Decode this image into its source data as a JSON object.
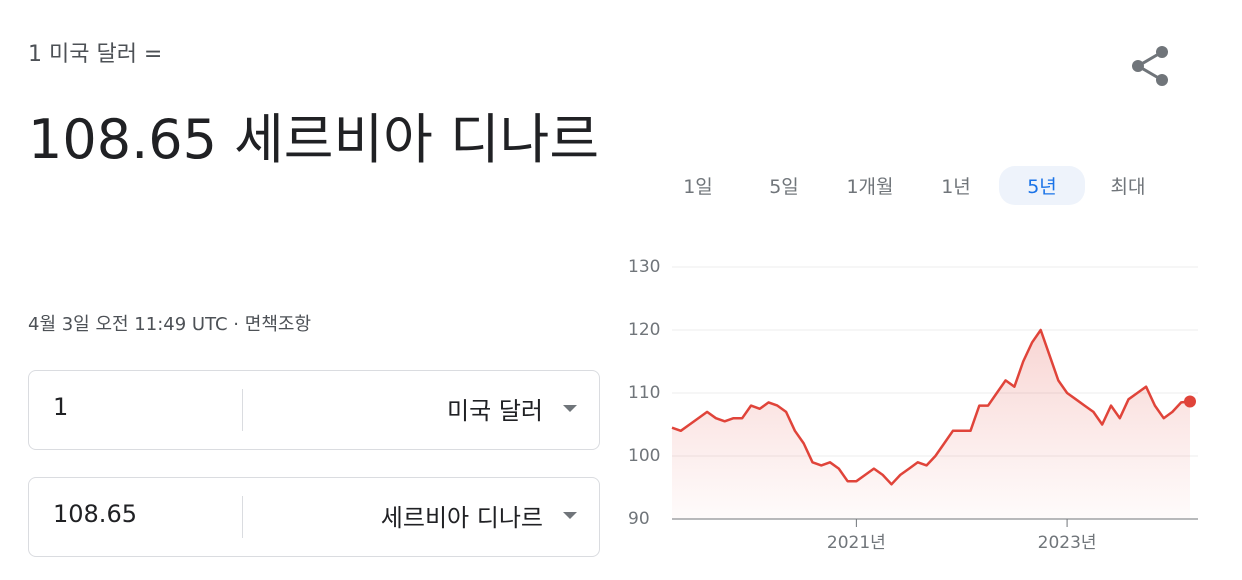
{
  "header": {
    "label": "1 미국 달러 =",
    "result": "108.65 세르비아 디나르",
    "timestamp": "4월 3일 오전 11:49 UTC ·",
    "disclaimer": "면책조항"
  },
  "converter": {
    "rows": [
      {
        "amount": "1",
        "currency": "미국 달러"
      },
      {
        "amount": "108.65",
        "currency": "세르비아 디나르"
      }
    ]
  },
  "ranges": {
    "options": [
      "1일",
      "5일",
      "1개월",
      "1년",
      "5년",
      "최대"
    ],
    "selected": 4
  },
  "chart_data": {
    "type": "line",
    "color": "#e0443a",
    "grid": true,
    "categories": [
      null,
      null,
      null,
      null,
      null,
      null,
      null,
      null,
      null,
      null,
      null,
      null,
      null,
      null,
      null,
      null,
      null,
      null,
      null,
      null,
      null,
      "2021년",
      null,
      null,
      null,
      null,
      null,
      null,
      null,
      null,
      null,
      null,
      null,
      null,
      null,
      null,
      null,
      null,
      null,
      null,
      null,
      null,
      null,
      null,
      null,
      "2023년",
      null,
      null,
      null,
      null,
      null,
      null,
      null,
      null,
      null,
      null,
      null,
      null,
      null,
      null
    ],
    "values": [
      104.5,
      104,
      105,
      106,
      107,
      106,
      105.5,
      106,
      106,
      108,
      107.5,
      108.5,
      108,
      107,
      104,
      102,
      99,
      98.5,
      99,
      98,
      96,
      96,
      97,
      98,
      97,
      95.5,
      97,
      98,
      99,
      98.5,
      100,
      102,
      104,
      104,
      104,
      108,
      108,
      110,
      112,
      111,
      115,
      118,
      120,
      116,
      112,
      110,
      109,
      108,
      107,
      105,
      108,
      106,
      109,
      110,
      111,
      108,
      106,
      107,
      108.5,
      108.65
    ],
    "ylim": [
      90,
      130
    ],
    "yticks": [
      90,
      100,
      110,
      120,
      130
    ]
  }
}
